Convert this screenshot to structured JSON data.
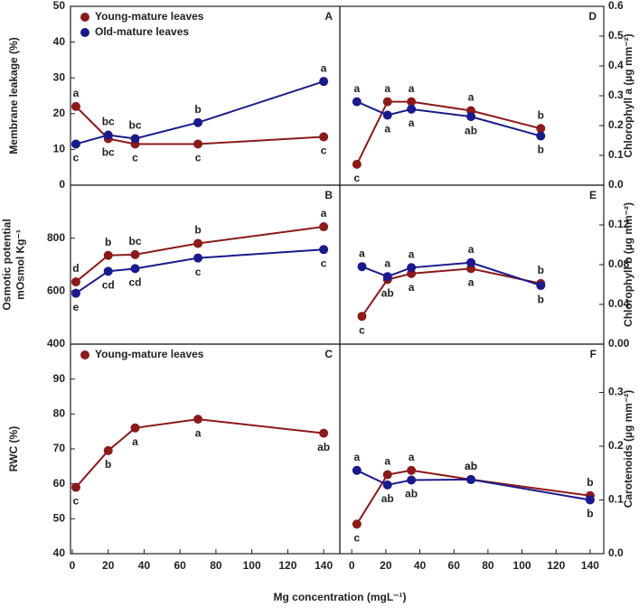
{
  "xlabel": "Mg concentration (mgL⁻¹)",
  "chart_data": [
    {
      "type": "line",
      "panel": "A",
      "ylabel": "Membrane leakage (%)",
      "xlim": [
        -1,
        149
      ],
      "ylim": [
        0,
        50
      ],
      "yticks": [
        0,
        10,
        20,
        30,
        40,
        50
      ],
      "legend": true,
      "x": [
        2,
        20,
        35,
        70,
        140
      ],
      "series": [
        {
          "name": "Young-mature leaves",
          "color": "#8b1a1a",
          "values": [
            22,
            13,
            11.5,
            11.5,
            13.5
          ],
          "letters": [
            "a",
            "bc",
            "c",
            "c",
            "c"
          ]
        },
        {
          "name": "Old-mature leaves",
          "color": "#1a1a8c",
          "values": [
            11.5,
            14,
            13,
            17.5,
            29
          ],
          "letters": [
            "c",
            "bc",
            "bc",
            "b",
            "a"
          ]
        }
      ]
    },
    {
      "type": "line",
      "panel": "B",
      "ylabel": [
        "Osmotic potential",
        "mOsmol Kg⁻¹"
      ],
      "xlim": [
        -1,
        149
      ],
      "ylim": [
        400,
        1000
      ],
      "yticks": [
        400,
        600,
        800
      ],
      "legend": false,
      "x": [
        2,
        20,
        35,
        70,
        140
      ],
      "series": [
        {
          "name": "Young-mature leaves",
          "color": "#8b1a1a",
          "values": [
            635,
            735,
            738,
            780,
            843
          ],
          "letters": [
            "d",
            "b",
            "bc",
            "b",
            "a"
          ]
        },
        {
          "name": "Old-mature leaves",
          "color": "#1a1a8c",
          "values": [
            592,
            675,
            685,
            725,
            757
          ],
          "letters": [
            "e",
            "cd",
            "cd",
            "c",
            "c"
          ]
        }
      ]
    },
    {
      "type": "line",
      "panel": "C",
      "ylabel": "RWC (%)",
      "xlim": [
        -1,
        149
      ],
      "ylim": [
        40,
        100
      ],
      "yticks": [
        40,
        50,
        60,
        70,
        80,
        90
      ],
      "legend": true,
      "xticks": [
        0,
        20,
        40,
        60,
        80,
        100,
        120,
        140
      ],
      "x": [
        2,
        20,
        35,
        70,
        140
      ],
      "series": [
        {
          "name": "Young-mature leaves",
          "color": "#8b1a1a",
          "values": [
            59,
            69.5,
            76,
            78.5,
            74.5
          ],
          "letters": [
            "c",
            "b",
            "a",
            "a",
            "ab"
          ]
        }
      ]
    },
    {
      "type": "line",
      "panel": "D",
      "ylabel": "Chlorophyll a (µg mm⁻²)",
      "xlim": [
        -7,
        148
      ],
      "ylim": [
        0,
        0.6
      ],
      "yticks": [
        {
          "value": 0,
          "label": "0.0"
        },
        0.1,
        0.2,
        0.3,
        0.4,
        0.5,
        0.6
      ],
      "legend": false,
      "x": [
        3,
        21,
        35,
        70,
        111
      ],
      "series": [
        {
          "name": "Young-mature leaves",
          "color": "#8b1a1a",
          "values": [
            0.07,
            0.28,
            0.28,
            0.25,
            0.19
          ],
          "letters": [
            "c",
            "a",
            "a",
            "a",
            "b"
          ]
        },
        {
          "name": "Old-mature leaves",
          "color": "#1a1a8c",
          "values": [
            0.28,
            0.235,
            0.255,
            0.23,
            0.165
          ],
          "letters": [
            "a",
            "a",
            "a",
            "ab",
            "b"
          ]
        }
      ]
    },
    {
      "type": "line",
      "panel": "E",
      "ylabel": "Chlorophyll b (µg mm⁻²)",
      "xlim": [
        -7,
        148
      ],
      "ylim": [
        0,
        0.16
      ],
      "yticks": [
        {
          "value": 0,
          "label": "0.00"
        },
        0.04,
        0.08,
        0.12
      ],
      "legend": false,
      "x": [
        6,
        21,
        35,
        70,
        111
      ],
      "series": [
        {
          "name": "Young-mature leaves",
          "color": "#8b1a1a",
          "values": [
            0.028,
            0.065,
            0.071,
            0.076,
            0.061
          ],
          "letters": [
            "c",
            "ab",
            "a",
            "a",
            "b"
          ]
        },
        {
          "name": "Old-mature leaves",
          "color": "#1a1a8c",
          "values": [
            0.078,
            0.068,
            0.077,
            0.082,
            0.059
          ],
          "letters": [
            "a",
            "a",
            "a",
            "a",
            "b"
          ]
        }
      ]
    },
    {
      "type": "line",
      "panel": "F",
      "ylabel": "Carotenoids (µg mm⁻²)",
      "xlim": [
        -7,
        148
      ],
      "ylim": [
        0,
        0.39
      ],
      "yticks": [
        {
          "value": 0,
          "label": "0.0"
        },
        0.1,
        0.2,
        0.3
      ],
      "legend": false,
      "xticks": [
        0,
        20,
        40,
        60,
        80,
        100,
        120,
        140
      ],
      "x": [
        3,
        21,
        35,
        70,
        140
      ],
      "series": [
        {
          "name": "Young-mature leaves",
          "color": "#8b1a1a",
          "values": [
            0.055,
            0.147,
            0.155,
            0.138,
            0.108
          ],
          "letters": [
            "c",
            "a",
            "a",
            "ab",
            "b"
          ]
        },
        {
          "name": "Old-mature leaves",
          "color": "#1a1a8c",
          "values": [
            0.155,
            0.128,
            0.137,
            0.138,
            0.1
          ],
          "letters": [
            "a",
            "ab",
            "ab",
            "ab",
            "b"
          ]
        }
      ]
    }
  ]
}
